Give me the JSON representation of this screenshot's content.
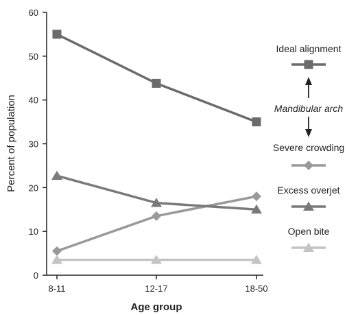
{
  "chart_data": {
    "type": "line",
    "title": "",
    "xlabel": "Age group",
    "ylabel": "Percent of population",
    "categories": [
      "8-11",
      "12-17",
      "18-50"
    ],
    "ylim": [
      0,
      60
    ],
    "yticks": [
      0,
      10,
      20,
      30,
      40,
      50,
      60
    ],
    "grid": false,
    "legend_placement": "right",
    "legend_note": "Mandibular arch",
    "series": [
      {
        "name": "Ideal alignment",
        "marker": "square",
        "color": "#6b6b6b",
        "values": [
          55,
          43.8,
          35
        ]
      },
      {
        "name": "Severe crowding",
        "marker": "diamond",
        "color": "#999999",
        "values": [
          5.5,
          13.5,
          18
        ]
      },
      {
        "name": "Excess overjet",
        "marker": "triangle",
        "color": "#7a7a7a",
        "values": [
          22.7,
          16.5,
          15
        ]
      },
      {
        "name": "Open bite",
        "marker": "triangle",
        "color": "#c4c4c4",
        "values": [
          3.5,
          3.5,
          3.5
        ]
      }
    ]
  }
}
